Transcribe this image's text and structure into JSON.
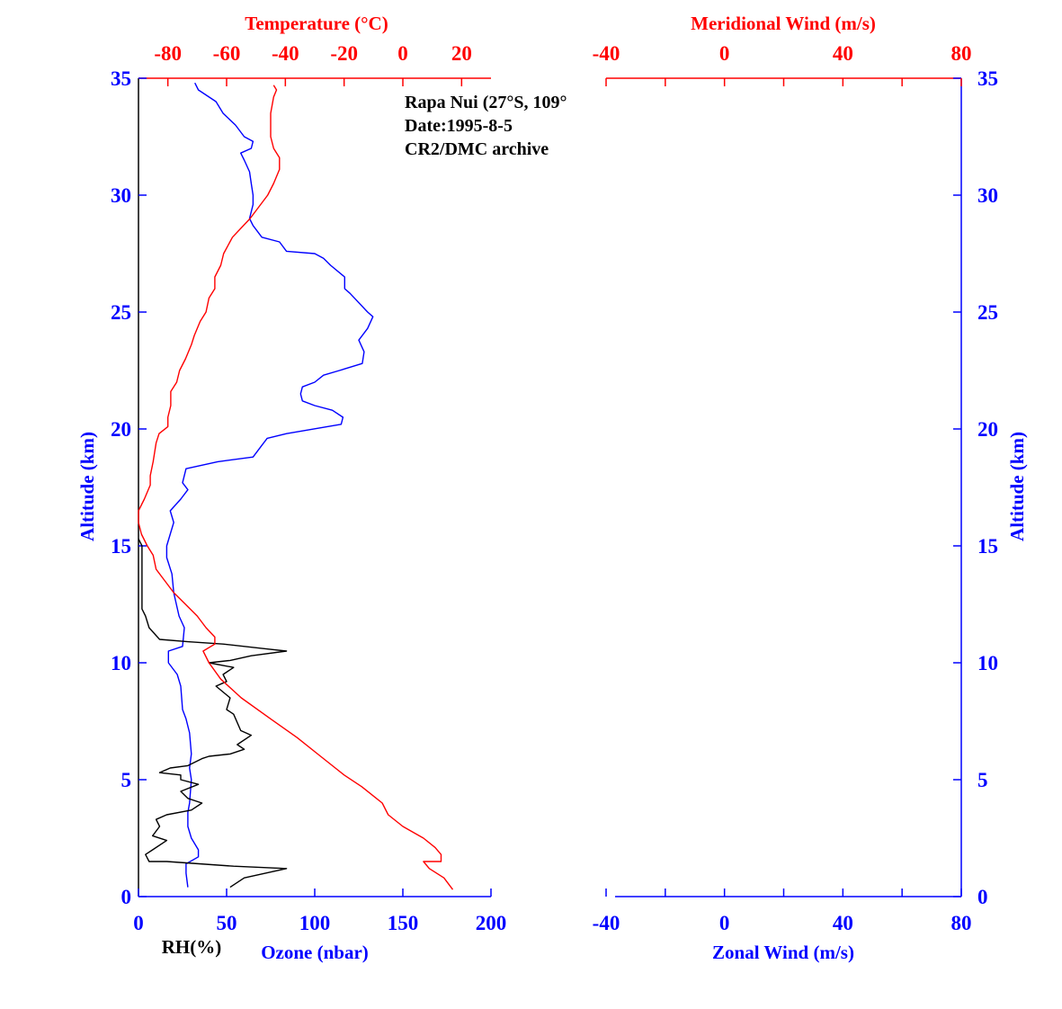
{
  "colors": {
    "blue": "#0000ff",
    "red": "#ff0000",
    "black": "#000000"
  },
  "chart_data": [
    {
      "type": "line",
      "panel": "left",
      "annotation": [
        "Rapa Nui (27°S, 109°",
        "Date:1995-8-5",
        "CR2/DMC archive"
      ],
      "ylabel": "Altitude (km)",
      "ylim": [
        0,
        35
      ],
      "yticks": [
        0,
        5,
        10,
        15,
        20,
        25,
        30,
        35
      ],
      "xaxes": {
        "ozone": {
          "label": "Ozone (nbar)",
          "lim": [
            0,
            200
          ],
          "ticks": [
            0,
            50,
            100,
            150,
            200
          ]
        },
        "rh": {
          "label": "RH(%)",
          "lim": [
            0,
            100
          ]
        },
        "temperature": {
          "label": "Temperature (°C)",
          "lim": [
            -90,
            30
          ],
          "ticks": [
            -80,
            -60,
            -40,
            -20,
            0,
            20
          ]
        }
      },
      "series": [
        {
          "key": "ozone",
          "axis": "ozone",
          "color": "blue",
          "points": [
            [
              28,
              0.4
            ],
            [
              27,
              1
            ],
            [
              27,
              1.4
            ],
            [
              34,
              1.7
            ],
            [
              34,
              2
            ],
            [
              30,
              2.5
            ],
            [
              28,
              3
            ],
            [
              28,
              3.6
            ],
            [
              29,
              4
            ],
            [
              30,
              5
            ],
            [
              29,
              5.5
            ],
            [
              30,
              6.1
            ],
            [
              29,
              7
            ],
            [
              27,
              7.6
            ],
            [
              25,
              8
            ],
            [
              24,
              9
            ],
            [
              22,
              9.5
            ],
            [
              17,
              10
            ],
            [
              17,
              10.5
            ],
            [
              25,
              10.7
            ],
            [
              26,
              11.5
            ],
            [
              23,
              12
            ],
            [
              20,
              13
            ],
            [
              19,
              13.8
            ],
            [
              16,
              14.5
            ],
            [
              16,
              15
            ],
            [
              18,
              15.5
            ],
            [
              20,
              16
            ],
            [
              18,
              16.5
            ],
            [
              24,
              17
            ],
            [
              28,
              17.4
            ],
            [
              25,
              17.7
            ],
            [
              27,
              18.3
            ],
            [
              45,
              18.6
            ],
            [
              65,
              18.8
            ],
            [
              70,
              19.3
            ],
            [
              73,
              19.6
            ],
            [
              84,
              19.8
            ],
            [
              115,
              20.2
            ],
            [
              116,
              20.5
            ],
            [
              110,
              20.8
            ],
            [
              100,
              21
            ],
            [
              93,
              21.2
            ],
            [
              92,
              21.5
            ],
            [
              93,
              21.8
            ],
            [
              100,
              22
            ],
            [
              105,
              22.3
            ],
            [
              114,
              22.5
            ],
            [
              127,
              22.8
            ],
            [
              128,
              23.3
            ],
            [
              125,
              23.8
            ],
            [
              130,
              24.3
            ],
            [
              133,
              24.8
            ],
            [
              130,
              25
            ],
            [
              120,
              25.8
            ],
            [
              117,
              26
            ],
            [
              117,
              26.5
            ],
            [
              109,
              27
            ],
            [
              105,
              27.3
            ],
            [
              100,
              27.5
            ],
            [
              84,
              27.6
            ],
            [
              80,
              28
            ],
            [
              70,
              28.2
            ],
            [
              65,
              28.7
            ],
            [
              63,
              29
            ],
            [
              65,
              29.6
            ],
            [
              65,
              30
            ],
            [
              64,
              30.5
            ],
            [
              63,
              31
            ],
            [
              60,
              31.5
            ],
            [
              58,
              31.8
            ],
            [
              64,
              32
            ],
            [
              65,
              32.3
            ],
            [
              60,
              32.5
            ],
            [
              55,
              33
            ],
            [
              48,
              33.5
            ],
            [
              44,
              34
            ],
            [
              34,
              34.5
            ],
            [
              32,
              34.8
            ]
          ]
        },
        {
          "key": "rh",
          "axis": "rh",
          "color": "black",
          "points": [
            [
              26,
              0.4
            ],
            [
              30,
              0.8
            ],
            [
              42,
              1.2
            ],
            [
              27,
              1.3
            ],
            [
              8,
              1.5
            ],
            [
              3,
              1.5
            ],
            [
              2,
              1.8
            ],
            [
              4,
              2
            ],
            [
              8,
              2.4
            ],
            [
              4,
              2.6
            ],
            [
              6,
              3
            ],
            [
              5,
              3.3
            ],
            [
              8,
              3.5
            ],
            [
              15,
              3.7
            ],
            [
              18,
              4
            ],
            [
              14,
              4.2
            ],
            [
              12,
              4.5
            ],
            [
              17,
              4.8
            ],
            [
              12,
              5
            ],
            [
              12,
              5.2
            ],
            [
              6,
              5.3
            ],
            [
              9,
              5.5
            ],
            [
              14,
              5.6
            ],
            [
              18,
              5.9
            ],
            [
              20,
              6
            ],
            [
              26,
              6.1
            ],
            [
              30,
              6.3
            ],
            [
              28,
              6.5
            ],
            [
              32,
              6.9
            ],
            [
              29,
              7.1
            ],
            [
              27,
              7.8
            ],
            [
              25,
              8
            ],
            [
              26,
              8.5
            ],
            [
              22,
              9
            ],
            [
              25,
              9.2
            ],
            [
              24,
              9.5
            ],
            [
              27,
              9.8
            ],
            [
              20,
              10
            ],
            [
              26,
              10.1
            ],
            [
              32,
              10.3
            ],
            [
              42,
              10.5
            ],
            [
              36,
              10.6
            ],
            [
              24,
              10.8
            ],
            [
              14,
              10.9
            ],
            [
              6,
              11
            ],
            [
              3,
              11.5
            ],
            [
              2,
              12
            ],
            [
              1,
              12.3
            ],
            [
              1,
              13
            ],
            [
              1,
              14
            ],
            [
              1,
              15
            ],
            [
              0,
              15.3
            ]
          ]
        },
        {
          "key": "temperature",
          "axis": "temperature",
          "color": "red",
          "points": [
            [
              17,
              0.3
            ],
            [
              14,
              0.8
            ],
            [
              9,
              1.2
            ],
            [
              7,
              1.5
            ],
            [
              13,
              1.5
            ],
            [
              13,
              1.8
            ],
            [
              11,
              2.1
            ],
            [
              7,
              2.5
            ],
            [
              0,
              3
            ],
            [
              -5,
              3.5
            ],
            [
              -7,
              4
            ],
            [
              -14,
              4.7
            ],
            [
              -20,
              5.2
            ],
            [
              -28,
              6
            ],
            [
              -36,
              6.8
            ],
            [
              -45,
              7.6
            ],
            [
              -55,
              8.5
            ],
            [
              -62,
              9.3
            ],
            [
              -66,
              10
            ],
            [
              -68,
              10.5
            ],
            [
              -64,
              10.8
            ],
            [
              -64,
              11.1
            ],
            [
              -67,
              11.5
            ],
            [
              -70,
              12
            ],
            [
              -74,
              12.5
            ],
            [
              -78,
              13
            ],
            [
              -81,
              13.5
            ],
            [
              -84,
              14
            ],
            [
              -85,
              14.6
            ],
            [
              -87,
              15
            ],
            [
              -89,
              15.5
            ],
            [
              -90,
              16
            ],
            [
              -90,
              16.5
            ],
            [
              -88,
              17
            ],
            [
              -86,
              17.6
            ],
            [
              -86,
              18
            ],
            [
              -85,
              18.6
            ],
            [
              -84,
              19.4
            ],
            [
              -83,
              19.8
            ],
            [
              -80,
              20.1
            ],
            [
              -80,
              20.5
            ],
            [
              -79,
              21
            ],
            [
              -79,
              21.6
            ],
            [
              -77,
              22
            ],
            [
              -76,
              22.5
            ],
            [
              -74,
              23
            ],
            [
              -72,
              23.6
            ],
            [
              -71,
              24
            ],
            [
              -69,
              24.6
            ],
            [
              -67,
              25
            ],
            [
              -66,
              25.6
            ],
            [
              -64,
              26
            ],
            [
              -64,
              26.5
            ],
            [
              -62,
              27
            ],
            [
              -61,
              27.5
            ],
            [
              -58,
              28.2
            ],
            [
              -55,
              28.6
            ],
            [
              -52,
              29
            ],
            [
              -49,
              29.5
            ],
            [
              -46,
              30
            ],
            [
              -44,
              30.5
            ],
            [
              -42,
              31.1
            ],
            [
              -42,
              31.6
            ],
            [
              -44,
              32
            ],
            [
              -45,
              32.5
            ],
            [
              -45,
              33.5
            ],
            [
              -44,
              34.2
            ],
            [
              -43,
              34.5
            ],
            [
              -44,
              34.7
            ]
          ]
        }
      ]
    },
    {
      "type": "line",
      "panel": "right",
      "ylabel": "Altitude (km)",
      "ylim": [
        0,
        35
      ],
      "yticks": [
        0,
        5,
        10,
        15,
        20,
        25,
        30,
        35
      ],
      "xaxes": {
        "zonal": {
          "label": "Zonal Wind (m/s)",
          "lim": [
            -40,
            80
          ],
          "ticks": [
            -40,
            0,
            40,
            80
          ]
        },
        "meridional": {
          "label": "Meridional Wind (m/s)",
          "lim": [
            -40,
            80
          ],
          "ticks": [
            -40,
            0,
            40,
            80
          ]
        }
      },
      "series": []
    }
  ]
}
